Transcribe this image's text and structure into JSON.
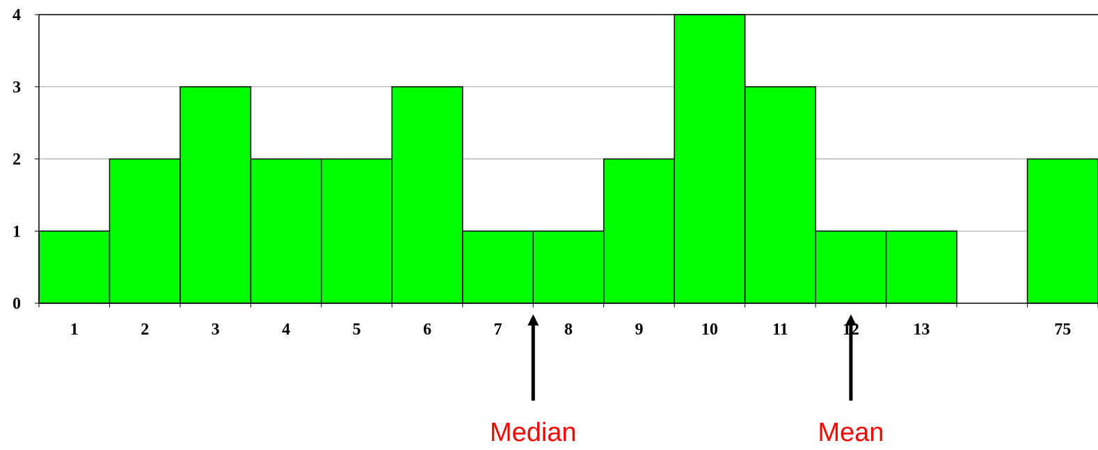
{
  "chart_data": {
    "type": "bar",
    "categories": [
      "1",
      "2",
      "3",
      "4",
      "5",
      "6",
      "7",
      "8",
      "9",
      "10",
      "11",
      "12",
      "13",
      "",
      "75"
    ],
    "values": [
      1,
      2,
      3,
      2,
      2,
      3,
      1,
      1,
      2,
      4,
      3,
      1,
      1,
      0,
      2
    ],
    "y_ticks": [
      "0",
      "1",
      "2",
      "3",
      "4"
    ],
    "ylim": [
      0,
      4
    ],
    "grid": true,
    "bar_color": "#00ff00",
    "annotations": [
      {
        "label": "Median",
        "at_boundary_after": "7",
        "color": "#ff0000"
      },
      {
        "label": "Mean",
        "at_category": "12",
        "color": "#ff0000"
      }
    ]
  }
}
